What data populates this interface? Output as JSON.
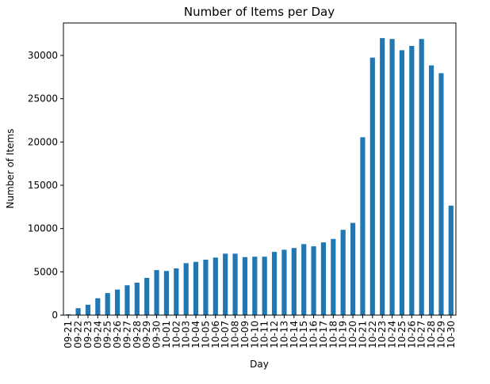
{
  "chart_data": {
    "type": "bar",
    "title": "Number of Items per Day",
    "xlabel": "Day",
    "ylabel": "Number of Items",
    "ylim": [
      0,
      33750
    ],
    "yticks": [
      0,
      5000,
      10000,
      15000,
      20000,
      25000,
      30000
    ],
    "grid": false,
    "bar_color": "#1f77b4",
    "categories": [
      "09-21",
      "09-22",
      "09-23",
      "09-24",
      "09-25",
      "09-26",
      "09-27",
      "09-28",
      "09-29",
      "09-30",
      "10-01",
      "10-02",
      "10-03",
      "10-04",
      "10-05",
      "10-06",
      "10-07",
      "10-08",
      "10-09",
      "10-10",
      "10-11",
      "10-12",
      "10-13",
      "10-14",
      "10-15",
      "10-16",
      "10-17",
      "10-18",
      "10-19",
      "10-20",
      "10-21",
      "10-22",
      "10-23",
      "10-24",
      "10-25",
      "10-26",
      "10-27",
      "10-28",
      "10-29",
      "10-30"
    ],
    "values": [
      100,
      800,
      1200,
      1950,
      2550,
      2950,
      3450,
      3750,
      4300,
      5200,
      5100,
      5400,
      6000,
      6150,
      6400,
      6650,
      7100,
      7100,
      6700,
      6750,
      6750,
      7300,
      7550,
      7750,
      8200,
      7950,
      8400,
      8800,
      9850,
      10650,
      20550,
      29750,
      32000,
      31900,
      30600,
      31100,
      31900,
      28850,
      27950,
      12650
    ]
  }
}
